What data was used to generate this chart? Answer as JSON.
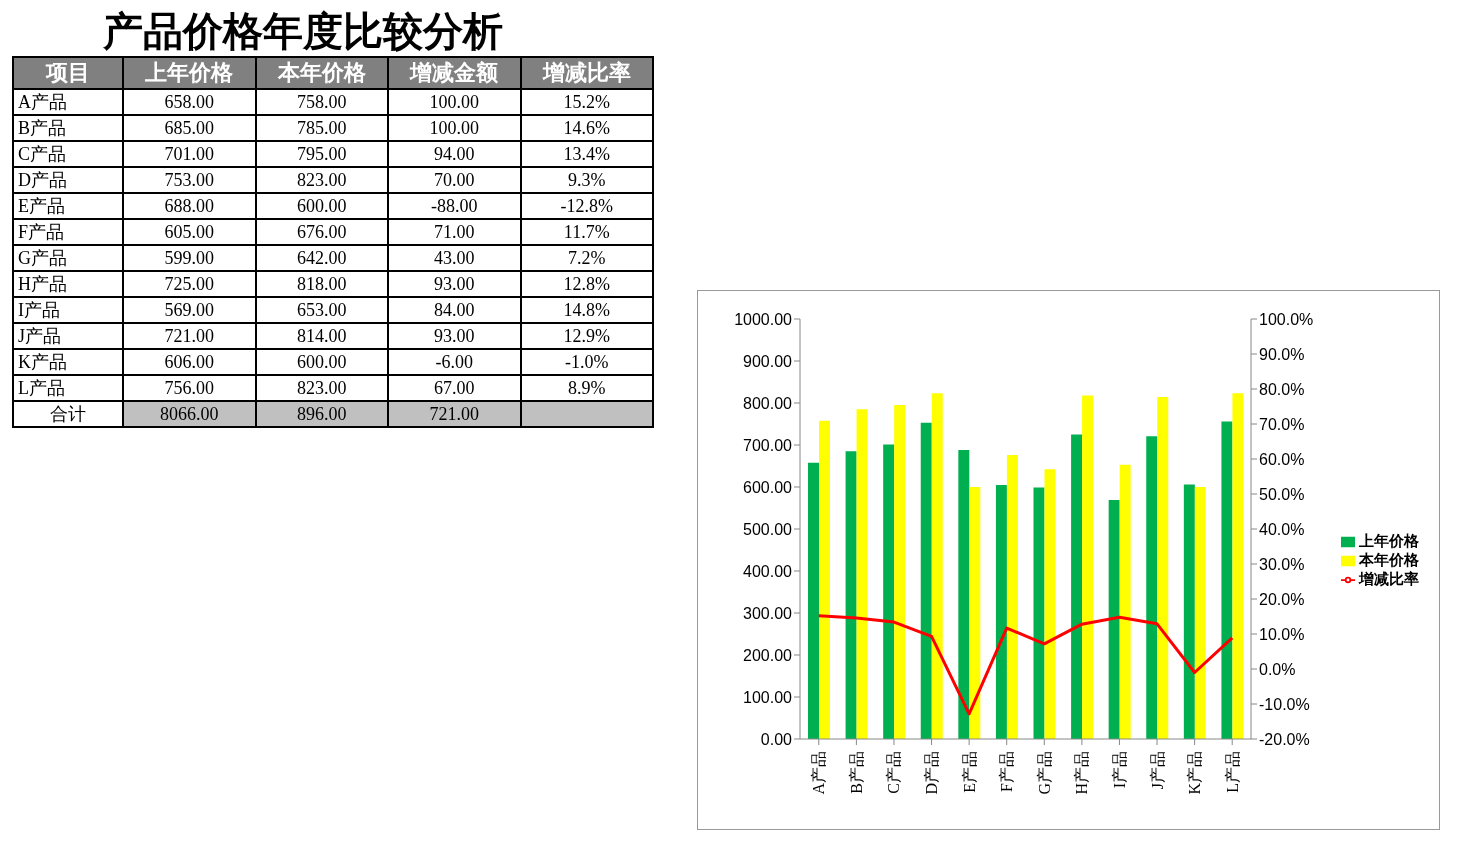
{
  "chart_data": [
    {
      "type": "other",
      "title": "产品价格年度比较分析",
      "xlabel": "项目",
      "categories": [
        "A产品",
        "B产品",
        "C产品",
        "D产品",
        "E产品",
        "F产品",
        "G产品",
        "H产品",
        "I产品",
        "J产品",
        "K产品",
        "L产品"
      ],
      "series": [
        {
          "name": "上年价格",
          "values": [
            658,
            685,
            701,
            753,
            688,
            605,
            599,
            725,
            569,
            721,
            606,
            756
          ],
          "value_labels": [
            "658.00",
            "685.00",
            "701.00",
            "753.00",
            "688.00",
            "605.00",
            "599.00",
            "725.00",
            "569.00",
            "721.00",
            "606.00",
            "756.00"
          ]
        },
        {
          "name": "本年价格",
          "values": [
            758,
            785,
            795,
            823,
            600,
            676,
            642,
            818,
            653,
            814,
            600,
            823
          ],
          "value_labels": [
            "758.00",
            "785.00",
            "795.00",
            "823.00",
            "600.00",
            "676.00",
            "642.00",
            "818.00",
            "653.00",
            "814.00",
            "600.00",
            "823.00"
          ]
        },
        {
          "name": "增减金额",
          "values": [
            100,
            100,
            94,
            70,
            -88,
            71,
            43,
            93,
            84,
            93,
            -6,
            67
          ],
          "value_labels": [
            "100.00",
            "100.00",
            "94.00",
            "70.00",
            "-88.00",
            "71.00",
            "43.00",
            "93.00",
            "84.00",
            "93.00",
            "-6.00",
            "67.00"
          ]
        },
        {
          "name": "增减比率",
          "values": [
            15.2,
            14.6,
            13.4,
            9.3,
            -12.8,
            11.7,
            7.2,
            12.8,
            14.8,
            12.9,
            -1.0,
            8.9
          ],
          "value_labels": [
            "15.2%",
            "14.6%",
            "13.4%",
            "9.3%",
            "-12.8%",
            "11.7%",
            "7.2%",
            "12.8%",
            "14.8%",
            "12.9%",
            "-1.0%",
            "8.9%"
          ]
        }
      ],
      "annotations": [
        "合计"
      ],
      "totals": [
        "8066.00",
        "896.00",
        "721.00",
        null
      ]
    },
    {
      "type": "bar",
      "categories": [
        "A产品",
        "B产品",
        "C产品",
        "D产品",
        "E产品",
        "F产品",
        "G产品",
        "H产品",
        "I产品",
        "J产品",
        "K产品",
        "L产品"
      ],
      "series": [
        {
          "name": "上年价格",
          "color": "#00b050",
          "values": [
            658,
            685,
            701,
            753,
            688,
            605,
            599,
            725,
            569,
            721,
            606,
            756
          ]
        },
        {
          "name": "本年价格",
          "color": "#ffff00",
          "values": [
            758,
            785,
            795,
            823,
            600,
            676,
            642,
            818,
            653,
            814,
            600,
            823
          ]
        },
        {
          "name": "增减比率",
          "type": "line",
          "axis": "y2",
          "color": "#ff0000",
          "values": [
            15.2,
            14.6,
            13.4,
            9.3,
            -12.8,
            11.7,
            7.2,
            12.8,
            14.8,
            12.9,
            -1.0,
            8.9
          ]
        }
      ],
      "ylim": [
        0,
        1000
      ],
      "yticks": [
        {
          "value": 0,
          "label": "0.00"
        },
        {
          "value": 100,
          "label": "100.00"
        },
        {
          "value": 200,
          "label": "200.00"
        },
        {
          "value": 300,
          "label": "300.00"
        },
        {
          "value": 400,
          "label": "400.00"
        },
        {
          "value": 500,
          "label": "500.00"
        },
        {
          "value": 600,
          "label": "600.00"
        },
        {
          "value": 700,
          "label": "700.00"
        },
        {
          "value": 800,
          "label": "800.00"
        },
        {
          "value": 900,
          "label": "900.00"
        },
        {
          "value": 1000,
          "label": "1000.00"
        }
      ],
      "y2lim": [
        -20,
        100
      ],
      "y2ticks": [
        {
          "value": -20,
          "label": "-20.0%"
        },
        {
          "value": -10,
          "label": "-10.0%"
        },
        {
          "value": 0,
          "label": "0.0%"
        },
        {
          "value": 10,
          "label": "10.0%"
        },
        {
          "value": 20,
          "label": "20.0%"
        },
        {
          "value": 30,
          "label": "30.0%"
        },
        {
          "value": 40,
          "label": "40.0%"
        },
        {
          "value": 50,
          "label": "50.0%"
        },
        {
          "value": 60,
          "label": "60.0%"
        },
        {
          "value": 70,
          "label": "70.0%"
        },
        {
          "value": 80,
          "label": "80.0%"
        },
        {
          "value": 90,
          "label": "90.0%"
        },
        {
          "value": 100,
          "label": "100.0%"
        }
      ],
      "legend": "right"
    }
  ]
}
